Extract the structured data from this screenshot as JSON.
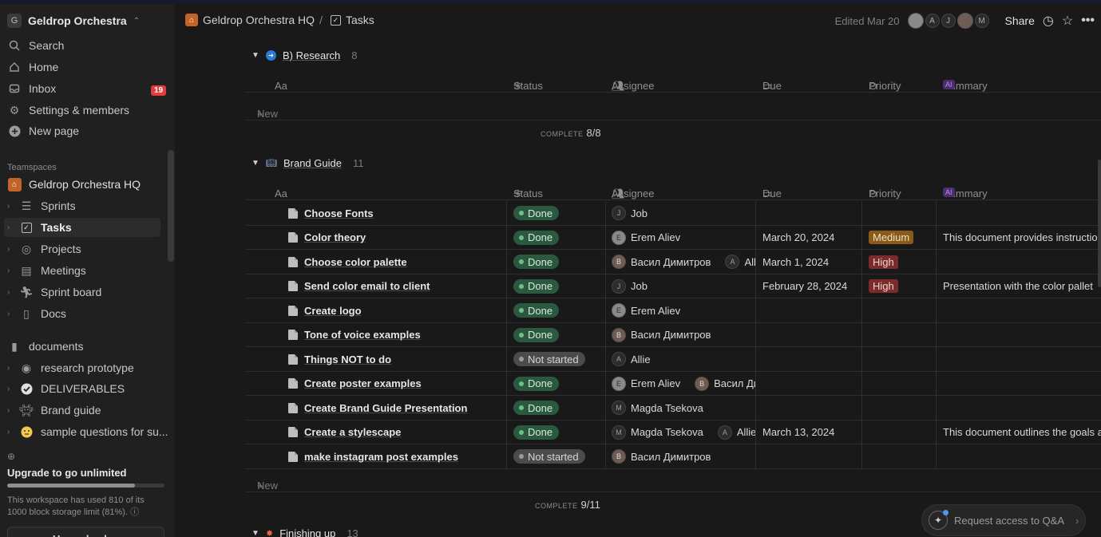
{
  "workspace": {
    "initial": "G",
    "name": "Geldrop Orchestra"
  },
  "sidebar": {
    "nav": [
      {
        "label": "Search",
        "icon": "search-icon"
      },
      {
        "label": "Home",
        "icon": "home-icon"
      },
      {
        "label": "Inbox",
        "icon": "inbox-icon",
        "badge": "19"
      },
      {
        "label": "Settings & members",
        "icon": "gear-icon"
      },
      {
        "label": "New page",
        "icon": "plus-circle-icon"
      }
    ],
    "teamspaces_label": "Teamspaces",
    "teamspace": "Geldrop Orchestra HQ",
    "team_items": [
      {
        "label": "Sprints",
        "icon": "database-icon"
      },
      {
        "label": "Tasks",
        "icon": "checkbox-icon",
        "selected": true
      },
      {
        "label": "Projects",
        "icon": "target-icon"
      },
      {
        "label": "Meetings",
        "icon": "list-icon"
      },
      {
        "label": "Sprint board",
        "icon": "runner-icon"
      },
      {
        "label": "Docs",
        "icon": "doc-icon"
      }
    ],
    "pages": [
      {
        "label": "documents",
        "icon": "page-icon"
      },
      {
        "label": "research prototype",
        "icon": "compass-icon"
      },
      {
        "label": "DELIVERABLES",
        "icon": "check-circle-icon"
      },
      {
        "label": "Brand guide",
        "icon": "space-invader-icon"
      },
      {
        "label": "sample questions for su...",
        "icon": "emoji-icon"
      }
    ],
    "upgrade": {
      "title": "Upgrade to go unlimited",
      "progress": 0.81,
      "text": "This workspace has used 810 of its 1000 block storage limit (81%).",
      "button": "Upgrade plan"
    }
  },
  "header": {
    "breadcrumb_root": "Geldrop Orchestra HQ",
    "breadcrumb_sep": "/",
    "breadcrumb_page": "Tasks",
    "edited": "Edited Mar 20",
    "avatars": [
      "A",
      "J",
      "M"
    ],
    "share": "Share"
  },
  "columns": {
    "name": "Aa",
    "status": "Status",
    "assignee": "Assignee",
    "due": "Due",
    "priority": "Priority",
    "summary": "Summary",
    "ai": "AI"
  },
  "groups": [
    {
      "name": "B) Research",
      "count": "8",
      "complete_label": "COMPLETE",
      "complete": "8/8",
      "new_label": "New"
    },
    {
      "name": "Brand Guide",
      "count": "11",
      "complete_label": "COMPLETE",
      "complete": "9/11",
      "new_label": "New"
    },
    {
      "name": "Finishing up",
      "count": "13"
    }
  ],
  "tasks": [
    {
      "name": "Choose Fonts",
      "status": "Done",
      "assignees": [
        {
          "initial": "J",
          "name": "Job"
        }
      ],
      "due": "",
      "priority": "",
      "summary": ""
    },
    {
      "name": "Color theory",
      "status": "Done",
      "assignees": [
        {
          "initial": "E",
          "name": "Erem Aliev",
          "photo": true
        }
      ],
      "due": "March 20, 2024",
      "priority": "Medium",
      "summary": "This document provides instructio"
    },
    {
      "name": "Choose color palette",
      "status": "Done",
      "assignees": [
        {
          "initial": "В",
          "name": "Васил Димитров",
          "photo2": true
        },
        {
          "initial": "A",
          "name": "Allie"
        }
      ],
      "due": "March 1, 2024",
      "priority": "High",
      "summary": ""
    },
    {
      "name": "Send color email to client",
      "status": "Done",
      "assignees": [
        {
          "initial": "J",
          "name": "Job"
        }
      ],
      "due": "February 28, 2024",
      "priority": "High",
      "summary": "Presentation with the color pallet"
    },
    {
      "name": "Create logo",
      "status": "Done",
      "assignees": [
        {
          "initial": "E",
          "name": "Erem Aliev",
          "photo": true
        }
      ],
      "due": "",
      "priority": "",
      "summary": ""
    },
    {
      "name": "Tone of voice examples",
      "status": "Done",
      "assignees": [
        {
          "initial": "В",
          "name": "Васил Димитров",
          "photo2": true
        }
      ],
      "due": "",
      "priority": "",
      "summary": ""
    },
    {
      "name": "Things NOT to do",
      "status": "Not started",
      "assignees": [
        {
          "initial": "A",
          "name": "Allie"
        }
      ],
      "due": "",
      "priority": "",
      "summary": ""
    },
    {
      "name": "Create poster examples",
      "status": "Done",
      "assignees": [
        {
          "initial": "E",
          "name": "Erem Aliev",
          "photo": true
        },
        {
          "initial": "В",
          "name": "Васил Дим",
          "photo2": true
        }
      ],
      "due": "",
      "priority": "",
      "summary": ""
    },
    {
      "name": "Create Brand Guide Presentation",
      "status": "Done",
      "assignees": [
        {
          "initial": "M",
          "name": "Magda Tsekova"
        }
      ],
      "due": "",
      "priority": "",
      "summary": ""
    },
    {
      "name": "Create a stylescape",
      "status": "Done",
      "assignees": [
        {
          "initial": "M",
          "name": "Magda Tsekova"
        },
        {
          "initial": "A",
          "name": "Allie"
        }
      ],
      "due": "March 13, 2024",
      "priority": "",
      "summary": "This document outlines the goals a"
    },
    {
      "name": "make instagram post examples",
      "status": "Not started",
      "assignees": [
        {
          "initial": "В",
          "name": "Васил Димитров",
          "photo2": true
        }
      ],
      "due": "",
      "priority": "",
      "summary": ""
    }
  ],
  "qa": {
    "label": "Request access to Q&A"
  }
}
